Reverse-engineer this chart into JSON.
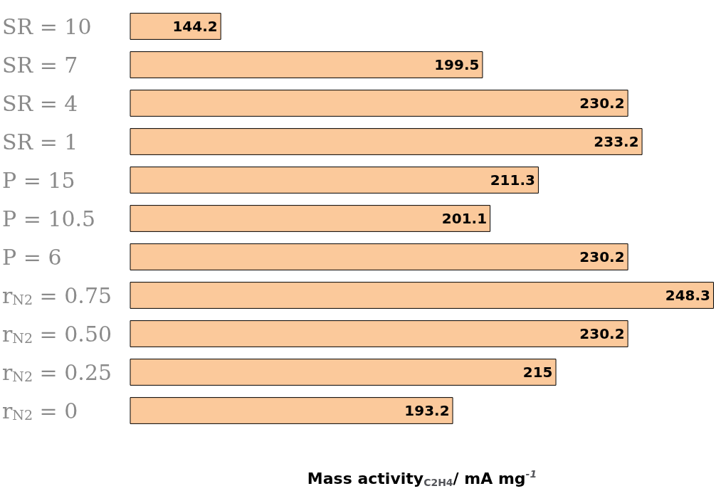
{
  "chart_data": {
    "type": "bar",
    "orientation": "horizontal",
    "categories": [
      "SR = 10",
      "SR = 7",
      "SR = 4",
      "SR = 1",
      "P = 15",
      "P = 10.5",
      "P = 6",
      "r$_{N2}$ = 0.75",
      "r$_{N2}$ = 0.50",
      "r$_{N2}$ = 0.25",
      "r$_{N2}$ = 0"
    ],
    "values": [
      144.2,
      199.5,
      230.2,
      233.2,
      211.3,
      201.1,
      230.2,
      248.3,
      230.2,
      215,
      193.2
    ],
    "color": "#fbc99b",
    "xlim": [
      125,
      248.3
    ],
    "data_labels": true,
    "xlabel": "Mass activity$_{C2H4}$/ mA mg$^{-1}$"
  }
}
